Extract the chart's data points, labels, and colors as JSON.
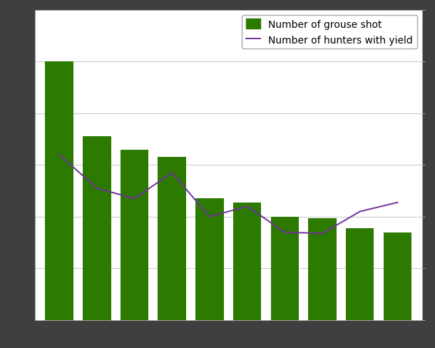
{
  "n_bars": 10,
  "bar_values": [
    1000,
    710,
    660,
    630,
    470,
    455,
    400,
    395,
    355,
    340
  ],
  "line_values": [
    640,
    510,
    470,
    570,
    400,
    440,
    340,
    335,
    420,
    455
  ],
  "bar_color": "#2d7a00",
  "line_color": "#7030a0",
  "bar_label": "Number of grouse shot",
  "line_label": "Number of hunters with yield",
  "plot_background": "#ffffff",
  "outer_background": "#3f3f3f",
  "grid_color": "#c8c8c8",
  "ylim": [
    0,
    1200
  ],
  "yticks": [
    0,
    200,
    400,
    600,
    800,
    1000,
    1200
  ],
  "figsize": [
    6.1,
    4.89
  ],
  "dpi": 100,
  "legend_fontsize": 10,
  "bar_width": 0.75,
  "line_linewidth": 1.4
}
